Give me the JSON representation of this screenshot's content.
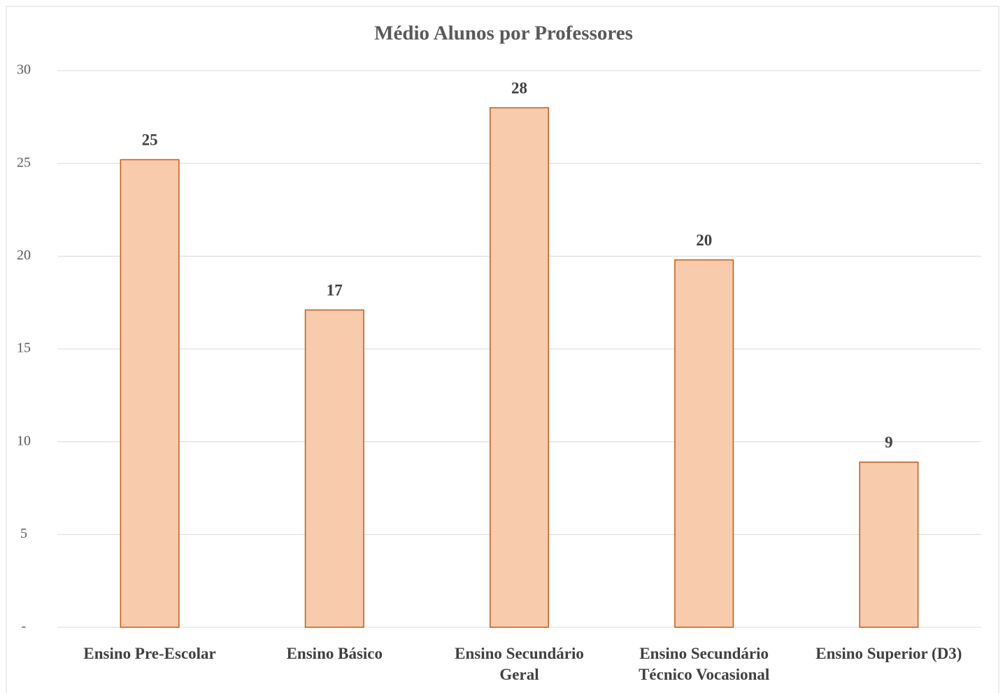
{
  "chart_data": {
    "type": "bar",
    "title": "Médio Alunos por Professores",
    "categories": [
      "Ensino Pre-Escolar",
      "Ensino Básico",
      "Ensino Secundário Geral",
      "Ensino Secundário Técnico Vocasional",
      "Ensino Superior (D3)"
    ],
    "values": [
      25.2,
      17.1,
      28.0,
      19.8,
      8.9
    ],
    "value_labels": [
      "25",
      "17",
      "28",
      "20",
      "9"
    ],
    "color": "#f8cbad",
    "edge_color": "#c55a11",
    "ylim": [
      0,
      30
    ],
    "yticks": [
      {
        "value": 0,
        "label": "-"
      },
      5,
      10,
      15,
      20,
      25,
      30
    ],
    "grid": true
  }
}
